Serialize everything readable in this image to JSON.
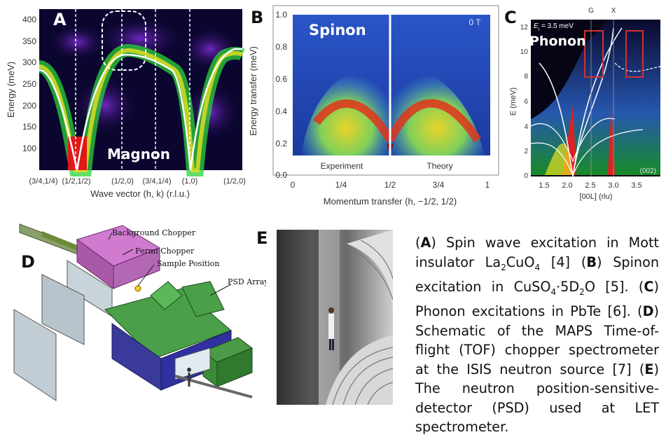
{
  "panelA": {
    "label": "A",
    "tag": "Magnon",
    "ylabel": "Energy (meV)",
    "xlabel": "Wave vector (h, k) (r.l.u.)",
    "yticks": [
      "400",
      "350",
      "300",
      "250",
      "200",
      "150",
      "100"
    ],
    "xticks": [
      "(3/4,1/4)",
      "(1/2,1/2)",
      "(1/2,0)",
      "(3/4,1/4)",
      "(1,0)",
      "(1/2,0)"
    ]
  },
  "panelB": {
    "label": "B",
    "tag": "Spinon",
    "field": "0 T",
    "ylabel": "Energy transfer (meV)",
    "xlabel": "Momentum transfer (h, −1/2, 1/2)",
    "yticks": [
      "1.0",
      "0.8",
      "0.6",
      "0.4",
      "0.2",
      "0.0"
    ],
    "xticks": [
      "0",
      "1/4",
      "1/2",
      "3/4",
      "1"
    ],
    "left_caption": "Experiment",
    "right_caption": "Theory"
  },
  "panelC": {
    "label": "C",
    "tag": "Phonon",
    "ei": "E",
    "ei_sub": "i",
    "ei_value": " = 3.5 meV",
    "top_labels": [
      "G",
      "X"
    ],
    "ylabel": "E (meV)",
    "xlabel": "[00L] (rlu)",
    "yticks": [
      "12",
      "10",
      "8",
      "6",
      "4",
      "2",
      "0"
    ],
    "xticks": [
      "1.5",
      "2.0",
      "2.5",
      "3.0",
      "3.5"
    ],
    "corner": "(002)"
  },
  "panelD": {
    "label": "D",
    "callouts": [
      "Background Chopper",
      "Fermi Chopper",
      "Sample Position",
      "PSD Array"
    ]
  },
  "panelE": {
    "label": "E"
  },
  "caption": {
    "a_letter": "A",
    "a_text1": " Spin wave excitation in Mott insulator La",
    "a_sub1": "2",
    "a_text2": "CuO",
    "a_sub2": "4",
    "a_text3": " [4] ",
    "b_letter": "B",
    "b_text1": " Spinon excitation in CuSO",
    "b_sub1": "4",
    "b_text2": "·5D",
    "b_sub2": "2",
    "b_text3": "O [5]. ",
    "c_letter": "C",
    "c_text": " Phonon excitations in PbTe [6]. ",
    "d_letter": "D",
    "d_text": " Schematic of the MAPS Time-of-flight (TOF) chopper spectrometer at the ISIS neutron source [7] ",
    "e_letter": "E",
    "e_text": " The neutron position-sensitive-detector (PSD) used at LET spectrometer."
  }
}
